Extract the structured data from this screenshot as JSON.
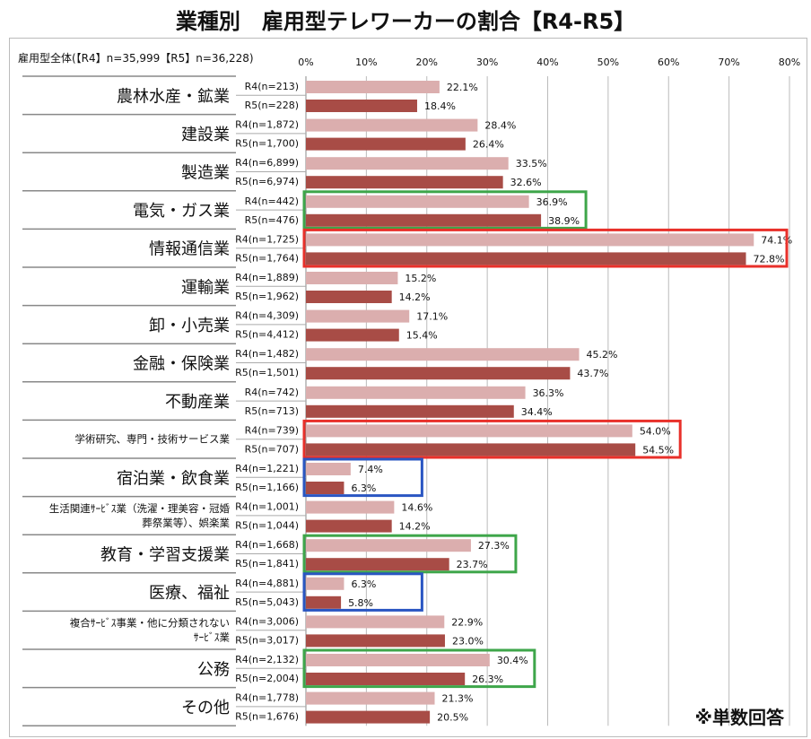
{
  "title": "業種別　雇用型テレワーカーの割合【R4-R5】",
  "subtitle": "雇用型全体(【R4】n=35,999【R5】n=36,228)",
  "note": "※単数回答",
  "colors": {
    "R4": "#dbaeae",
    "R5": "#a84c46",
    "green": "#3ea64a",
    "red": "#e8302a",
    "blue": "#2a56c2"
  },
  "chart_data": {
    "type": "bar",
    "orientation": "horizontal",
    "xlim": [
      0,
      80
    ],
    "ticks": [
      "0%",
      "10%",
      "20%",
      "30%",
      "40%",
      "50%",
      "60%",
      "70%",
      "80%"
    ],
    "grid": true,
    "series": [
      {
        "name": "R4"
      },
      {
        "name": "R5"
      }
    ],
    "categories": [
      {
        "name": "農林水産・鉱業",
        "r4n": "R4(n=213)",
        "r5n": "R5(n=228)",
        "r4": 22.1,
        "r5": 18.4,
        "r4l": "22.1%",
        "r5l": "18.4%"
      },
      {
        "name": "建設業",
        "r4n": "R4(n=1,872)",
        "r5n": "R5(n=1,700)",
        "r4": 28.4,
        "r5": 26.4,
        "r4l": "28.4%",
        "r5l": "26.4%"
      },
      {
        "name": "製造業",
        "r4n": "R4(n=6,899)",
        "r5n": "R5(n=6,974)",
        "r4": 33.5,
        "r5": 32.6,
        "r4l": "33.5%",
        "r5l": "32.6%"
      },
      {
        "name": "電気・ガス業",
        "r4n": "R4(n=442)",
        "r5n": "R5(n=476)",
        "r4": 36.9,
        "r5": 38.9,
        "r4l": "36.9%",
        "r5l": "38.9%",
        "highlight": "green"
      },
      {
        "name": "情報通信業",
        "r4n": "R4(n=1,725)",
        "r5n": "R5(n=1,764)",
        "r4": 74.1,
        "r5": 72.8,
        "r4l": "74.1%",
        "r5l": "72.8%",
        "highlight": "red"
      },
      {
        "name": "運輸業",
        "r4n": "R4(n=1,889)",
        "r5n": "R5(n=1,962)",
        "r4": 15.2,
        "r5": 14.2,
        "r4l": "15.2%",
        "r5l": "14.2%"
      },
      {
        "name": "卸・小売業",
        "r4n": "R4(n=4,309)",
        "r5n": "R5(n=4,412)",
        "r4": 17.1,
        "r5": 15.4,
        "r4l": "17.1%",
        "r5l": "15.4%"
      },
      {
        "name": "金融・保険業",
        "r4n": "R4(n=1,482)",
        "r5n": "R5(n=1,501)",
        "r4": 45.2,
        "r5": 43.7,
        "r4l": "45.2%",
        "r5l": "43.7%"
      },
      {
        "name": "不動産業",
        "r4n": "R4(n=742)",
        "r5n": "R5(n=713)",
        "r4": 36.3,
        "r5": 34.4,
        "r4l": "36.3%",
        "r5l": "34.4%"
      },
      {
        "name": "学術研究、専門・技術サービス業",
        "r4n": "R4(n=739)",
        "r5n": "R5(n=707)",
        "r4": 54.0,
        "r5": 54.5,
        "r4l": "54.0%",
        "r5l": "54.5%",
        "highlight": "red",
        "small": true
      },
      {
        "name": "宿泊業・飲食業",
        "r4n": "R4(n=1,221)",
        "r5n": "R5(n=1,166)",
        "r4": 7.4,
        "r5": 6.3,
        "r4l": "7.4%",
        "r5l": "6.3%",
        "highlight": "blue"
      },
      {
        "name": "生活関連ｻｰﾋﾞｽ業（洗濯・理美容・冠婚|葬祭業等）、娯楽業",
        "r4n": "R4(n=1,001)",
        "r5n": "R5(n=1,044)",
        "r4": 14.6,
        "r5": 14.2,
        "r4l": "14.6%",
        "r5l": "14.2%",
        "small": true
      },
      {
        "name": "教育・学習支援業",
        "r4n": "R4(n=1,668)",
        "r5n": "R5(n=1,841)",
        "r4": 27.3,
        "r5": 23.7,
        "r4l": "27.3%",
        "r5l": "23.7%",
        "highlight": "green"
      },
      {
        "name": "医療、福祉",
        "r4n": "R4(n=4,881)",
        "r5n": "R5(n=5,043)",
        "r4": 6.3,
        "r5": 5.8,
        "r4l": "6.3%",
        "r5l": "5.8%",
        "highlight": "blue"
      },
      {
        "name": "複合ｻｰﾋﾞｽ事業・他に分類されない|ｻｰﾋﾞｽ業",
        "r4n": "R4(n=3,006)",
        "r5n": "R5(n=3,017)",
        "r4": 22.9,
        "r5": 23.0,
        "r4l": "22.9%",
        "r5l": "23.0%",
        "small": true
      },
      {
        "name": "公務",
        "r4n": "R4(n=2,132)",
        "r5n": "R5(n=2,004)",
        "r4": 30.4,
        "r5": 26.3,
        "r4l": "30.4%",
        "r5l": "26.3%",
        "highlight": "green"
      },
      {
        "name": "その他",
        "r4n": "R4(n=1,778)",
        "r5n": "R5(n=1,676)",
        "r4": 21.3,
        "r5": 20.5,
        "r4l": "21.3%",
        "r5l": "20.5%"
      }
    ]
  }
}
